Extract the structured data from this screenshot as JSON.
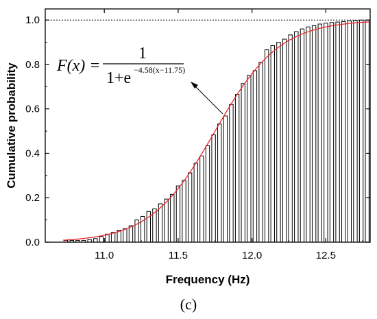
{
  "chart_data": {
    "type": "bar",
    "xlabel": "Frequency (Hz)",
    "ylabel": "Cumulative probability",
    "xlim": [
      10.6,
      12.8
    ],
    "ylim": [
      0.0,
      1.05
    ],
    "xticks": [
      {
        "value": 11.0,
        "label": "11.0"
      },
      {
        "value": 11.5,
        "label": "11.5"
      },
      {
        "value": 12.0,
        "label": "12.0"
      },
      {
        "value": 12.5,
        "label": "12.5"
      }
    ],
    "yticks": [
      {
        "value": 0.0,
        "label": "0.0"
      },
      {
        "value": 0.2,
        "label": "0.2"
      },
      {
        "value": 0.4,
        "label": "0.4"
      },
      {
        "value": 0.6,
        "label": "0.6"
      },
      {
        "value": 0.8,
        "label": "0.8"
      },
      {
        "value": 1.0,
        "label": "1.0"
      }
    ],
    "reference_line": {
      "y": 1.0,
      "style": "dotted"
    },
    "bars": {
      "x": [
        10.74,
        10.78,
        10.82,
        10.86,
        10.9,
        10.94,
        10.98,
        11.02,
        11.06,
        11.1,
        11.14,
        11.18,
        11.22,
        11.26,
        11.3,
        11.34,
        11.38,
        11.42,
        11.46,
        11.5,
        11.54,
        11.58,
        11.62,
        11.66,
        11.7,
        11.74,
        11.78,
        11.82,
        11.86,
        11.9,
        11.94,
        11.98,
        12.02,
        12.06,
        12.1,
        12.14,
        12.18,
        12.22,
        12.26,
        12.3,
        12.34,
        12.38,
        12.42,
        12.46,
        12.5,
        12.54,
        12.58,
        12.62,
        12.66,
        12.7,
        12.74,
        12.78
      ],
      "values": [
        0.008,
        0.008,
        0.008,
        0.008,
        0.012,
        0.016,
        0.025,
        0.036,
        0.044,
        0.054,
        0.061,
        0.074,
        0.1,
        0.116,
        0.138,
        0.15,
        0.173,
        0.194,
        0.215,
        0.253,
        0.278,
        0.312,
        0.356,
        0.388,
        0.434,
        0.483,
        0.532,
        0.568,
        0.62,
        0.665,
        0.714,
        0.751,
        0.772,
        0.81,
        0.866,
        0.885,
        0.9,
        0.914,
        0.933,
        0.948,
        0.96,
        0.969,
        0.975,
        0.982,
        0.986,
        0.989,
        0.991,
        0.993,
        0.996,
        0.998,
        1.0,
        1.0
      ],
      "color": "#ffffff",
      "edge_color": "#000000"
    },
    "fit_curve": {
      "color": "#e8262a",
      "a": 4.58,
      "mu": 11.75
    },
    "annotation": {
      "lhs": "F(x) =",
      "numerator": "1",
      "denominator_base": "1+e",
      "exponent": "−4.58(x−11.75)"
    },
    "grid": false
  },
  "panel_label": "(c)"
}
